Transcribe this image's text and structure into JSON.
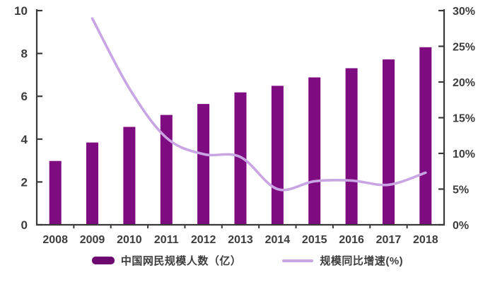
{
  "chart_data": {
    "type": "bar+line",
    "title": "",
    "xlabel": "",
    "ylabel_left": "",
    "ylabel_right": "",
    "categories": [
      "2008",
      "2009",
      "2010",
      "2011",
      "2012",
      "2013",
      "2014",
      "2015",
      "2016",
      "2017",
      "2018"
    ],
    "series": [
      {
        "name": "中国网民规模人数（亿）",
        "type": "bar",
        "axis": "left",
        "color": "#7e0b80",
        "values": [
          2.98,
          3.84,
          4.57,
          5.13,
          5.64,
          6.18,
          6.49,
          6.88,
          7.31,
          7.72,
          8.29
        ]
      },
      {
        "name": "规模同比增速(%)",
        "type": "line",
        "axis": "right",
        "color": "#c9a6e3",
        "values": [
          null,
          28.9,
          19.1,
          12.2,
          9.9,
          9.5,
          5.0,
          6.1,
          6.2,
          5.6,
          7.3
        ]
      }
    ],
    "left_axis": {
      "min": 0,
      "max": 10,
      "tick_values": [
        0,
        2,
        4,
        6,
        8,
        10
      ],
      "tick_labels": [
        "0",
        "2",
        "4",
        "6",
        "8",
        "10"
      ]
    },
    "right_axis": {
      "min": 0,
      "max": 30,
      "tick_values": [
        0,
        5,
        10,
        15,
        20,
        25,
        30
      ],
      "tick_labels": [
        "0%",
        "5%",
        "10%",
        "15%",
        "20%",
        "25%",
        "30%"
      ]
    },
    "legend": [
      {
        "label": "中国网民规模人数（亿）",
        "marker": "bar-swatch"
      },
      {
        "label": "规模同比增速(%)",
        "marker": "line-swatch"
      }
    ],
    "grid": false,
    "legend_position": "bottom-center",
    "colors": {
      "axis": "#3a3a3a",
      "tick_label": "#3d3d3d",
      "background": "#ffffff"
    }
  }
}
